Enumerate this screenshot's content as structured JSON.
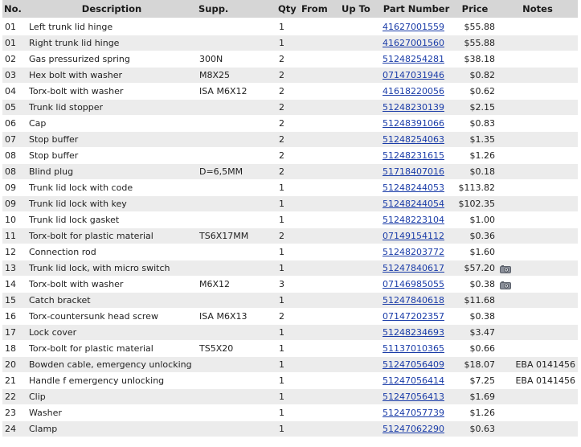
{
  "columns": {
    "no": "No.",
    "description": "Description",
    "supp": "Supp.",
    "qty": "Qty",
    "from": "From",
    "up_to": "Up To",
    "part_number": "Part Number",
    "price": "Price",
    "notes": "Notes"
  },
  "rows": [
    {
      "no": "01",
      "description": "Left trunk lid hinge",
      "supp": "",
      "qty": "1",
      "from": "",
      "up_to": "",
      "part_number": "41627001559",
      "price": "$55.88",
      "camera": false,
      "notes": ""
    },
    {
      "no": "01",
      "description": "Right trunk lid hinge",
      "supp": "",
      "qty": "1",
      "from": "",
      "up_to": "",
      "part_number": "41627001560",
      "price": "$55.88",
      "camera": false,
      "notes": ""
    },
    {
      "no": "02",
      "description": "Gas pressurized spring",
      "supp": "300N",
      "qty": "2",
      "from": "",
      "up_to": "",
      "part_number": "51248254281",
      "price": "$38.18",
      "camera": false,
      "notes": ""
    },
    {
      "no": "03",
      "description": "Hex bolt with washer",
      "supp": "M8X25",
      "qty": "2",
      "from": "",
      "up_to": "",
      "part_number": "07147031946",
      "price": "$0.82",
      "camera": false,
      "notes": ""
    },
    {
      "no": "04",
      "description": "Torx-bolt with washer",
      "supp": "ISA M6X12",
      "qty": "2",
      "from": "",
      "up_to": "",
      "part_number": "41618220056",
      "price": "$0.62",
      "camera": false,
      "notes": ""
    },
    {
      "no": "05",
      "description": "Trunk lid stopper",
      "supp": "",
      "qty": "2",
      "from": "",
      "up_to": "",
      "part_number": "51248230139",
      "price": "$2.15",
      "camera": false,
      "notes": ""
    },
    {
      "no": "06",
      "description": "Cap",
      "supp": "",
      "qty": "2",
      "from": "",
      "up_to": "",
      "part_number": "51248391066",
      "price": "$0.83",
      "camera": false,
      "notes": ""
    },
    {
      "no": "07",
      "description": "Stop buffer",
      "supp": "",
      "qty": "2",
      "from": "",
      "up_to": "",
      "part_number": "51248254063",
      "price": "$1.35",
      "camera": false,
      "notes": ""
    },
    {
      "no": "08",
      "description": "Stop buffer",
      "supp": "",
      "qty": "2",
      "from": "",
      "up_to": "",
      "part_number": "51248231615",
      "price": "$1.26",
      "camera": false,
      "notes": ""
    },
    {
      "no": "08",
      "description": "Blind plug",
      "supp": "D=6,5MM",
      "qty": "2",
      "from": "",
      "up_to": "",
      "part_number": "51718407016",
      "price": "$0.18",
      "camera": false,
      "notes": ""
    },
    {
      "no": "09",
      "description": "Trunk lid lock with code",
      "supp": "",
      "qty": "1",
      "from": "",
      "up_to": "",
      "part_number": "51248244053",
      "price": "$113.82",
      "camera": false,
      "notes": ""
    },
    {
      "no": "09",
      "description": "Trunk lid lock with key",
      "supp": "",
      "qty": "1",
      "from": "",
      "up_to": "",
      "part_number": "51248244054",
      "price": "$102.35",
      "camera": false,
      "notes": ""
    },
    {
      "no": "10",
      "description": "Trunk lid lock gasket",
      "supp": "",
      "qty": "1",
      "from": "",
      "up_to": "",
      "part_number": "51248223104",
      "price": "$1.00",
      "camera": false,
      "notes": ""
    },
    {
      "no": "11",
      "description": "Torx-bolt for plastic material",
      "supp": "TS6X17MM",
      "qty": "2",
      "from": "",
      "up_to": "",
      "part_number": "07149154112",
      "price": "$0.36",
      "camera": false,
      "notes": ""
    },
    {
      "no": "12",
      "description": "Connection rod",
      "supp": "",
      "qty": "1",
      "from": "",
      "up_to": "",
      "part_number": "51248203772",
      "price": "$1.60",
      "camera": false,
      "notes": ""
    },
    {
      "no": "13",
      "description": "Trunk lid lock, with micro switch",
      "supp": "",
      "qty": "1",
      "from": "",
      "up_to": "",
      "part_number": "51247840617",
      "price": "$57.20",
      "camera": true,
      "notes": ""
    },
    {
      "no": "14",
      "description": "Torx-bolt with washer",
      "supp": "M6X12",
      "qty": "3",
      "from": "",
      "up_to": "",
      "part_number": "07146985055",
      "price": "$0.38",
      "camera": true,
      "notes": ""
    },
    {
      "no": "15",
      "description": "Catch bracket",
      "supp": "",
      "qty": "1",
      "from": "",
      "up_to": "",
      "part_number": "51247840618",
      "price": "$11.68",
      "camera": false,
      "notes": ""
    },
    {
      "no": "16",
      "description": "Torx-countersunk head screw",
      "supp": "ISA M6X13",
      "qty": "2",
      "from": "",
      "up_to": "",
      "part_number": "07147202357",
      "price": "$0.38",
      "camera": false,
      "notes": ""
    },
    {
      "no": "17",
      "description": "Lock cover",
      "supp": "",
      "qty": "1",
      "from": "",
      "up_to": "",
      "part_number": "51248234693",
      "price": "$3.47",
      "camera": false,
      "notes": ""
    },
    {
      "no": "18",
      "description": "Torx-bolt for plastic material",
      "supp": "TS5X20",
      "qty": "1",
      "from": "",
      "up_to": "",
      "part_number": "51137010365",
      "price": "$0.66",
      "camera": false,
      "notes": ""
    },
    {
      "no": "20",
      "description": "Bowden cable, emergency unlocking",
      "supp": "",
      "qty": "1",
      "from": "",
      "up_to": "",
      "part_number": "51247056409",
      "price": "$18.07",
      "camera": false,
      "notes": "EBA 0141456"
    },
    {
      "no": "21",
      "description": "Handle f emergency unlocking",
      "supp": "",
      "qty": "1",
      "from": "",
      "up_to": "",
      "part_number": "51247056414",
      "price": "$7.25",
      "camera": false,
      "notes": "EBA 0141456"
    },
    {
      "no": "22",
      "description": "Clip",
      "supp": "",
      "qty": "1",
      "from": "",
      "up_to": "",
      "part_number": "51247056413",
      "price": "$1.69",
      "camera": false,
      "notes": ""
    },
    {
      "no": "23",
      "description": "Washer",
      "supp": "",
      "qty": "1",
      "from": "",
      "up_to": "",
      "part_number": "51247057739",
      "price": "$1.26",
      "camera": false,
      "notes": ""
    },
    {
      "no": "24",
      "description": "Clamp",
      "supp": "",
      "qty": "1",
      "from": "",
      "up_to": "",
      "part_number": "51247062290",
      "price": "$0.63",
      "camera": false,
      "notes": ""
    }
  ],
  "icons": {
    "camera": "camera-icon"
  },
  "colors": {
    "header_bg": "#d6d6d6",
    "row_alt_bg": "#ececec",
    "link": "#1a3ca8"
  }
}
